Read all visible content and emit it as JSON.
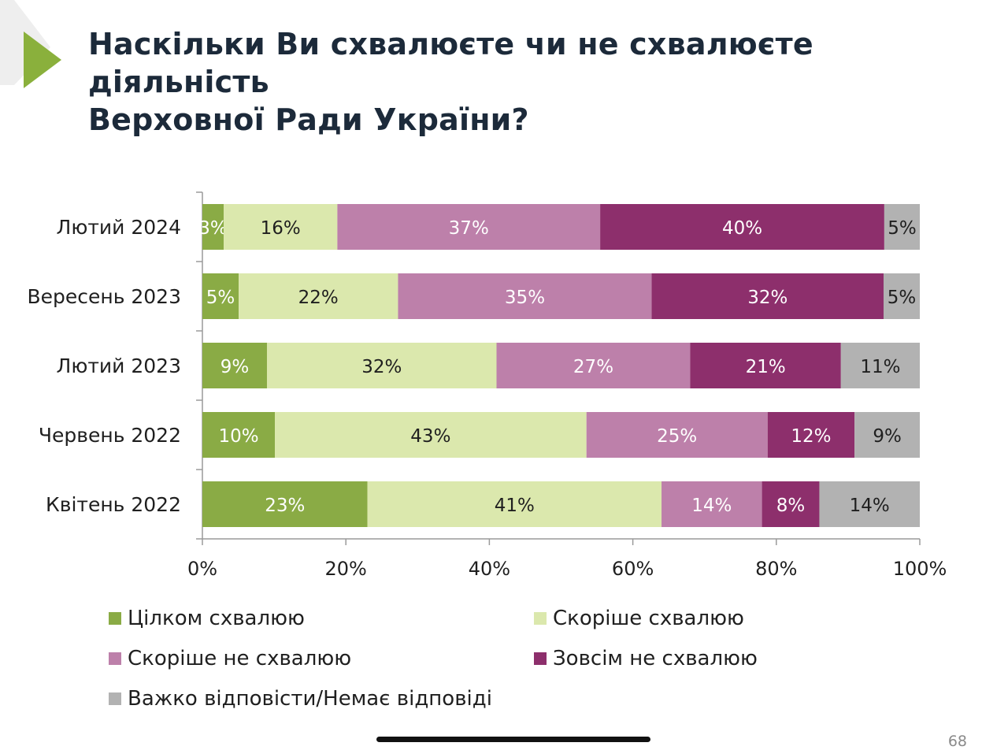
{
  "slide": {
    "title_line1": "Наскільки Ви схвалюєте чи не схвалюєте діяльність",
    "title_line2": "Верховної Ради України?",
    "page_number": "68",
    "accent_color": "#8ab03c",
    "title_color": "#1c2a3a"
  },
  "chart_data": {
    "type": "bar",
    "orientation": "horizontal",
    "stacked": "percent",
    "categories": [
      "Лютий 2024",
      "Вересень 2023",
      "Лютий 2023",
      "Червень 2022",
      "Квітень 2022"
    ],
    "series": [
      {
        "name": "Цілком схвалюю",
        "color": "#8aab45",
        "text_color": "#ffffff",
        "values": [
          3,
          5,
          9,
          10,
          23
        ]
      },
      {
        "name": "Скоріше схвалюю",
        "color": "#dbe8ad",
        "text_color": "#1f1f1f",
        "values": [
          16,
          22,
          32,
          43,
          41
        ]
      },
      {
        "name": "Скоріше не схвалюю",
        "color": "#bd80aa",
        "text_color": "#ffffff",
        "values": [
          37,
          35,
          27,
          25,
          14
        ]
      },
      {
        "name": "Зовсім не схвалюю",
        "color": "#8d2f6c",
        "text_color": "#ffffff",
        "values": [
          40,
          32,
          21,
          12,
          8
        ]
      },
      {
        "name": "Важко відповісти/Немає відповіді",
        "color": "#b2b2b2",
        "text_color": "#1f1f1f",
        "values": [
          5,
          5,
          11,
          9,
          14
        ]
      }
    ],
    "xlim": [
      0,
      100
    ],
    "xticks": [
      "0%",
      "20%",
      "40%",
      "60%",
      "80%",
      "100%"
    ],
    "grid": false,
    "legend_position": "bottom"
  },
  "legend": {
    "items": [
      {
        "label": "Цілком схвалюю",
        "color": "#8aab45"
      },
      {
        "label": "Скоріше схвалюю",
        "color": "#dbe8ad"
      },
      {
        "label": "Скоріше не схвалюю",
        "color": "#bd80aa"
      },
      {
        "label": "Зовсім не схвалюю",
        "color": "#8d2f6c"
      },
      {
        "label": "Важко відповісти/Немає відповіді",
        "color": "#b2b2b2"
      }
    ]
  }
}
